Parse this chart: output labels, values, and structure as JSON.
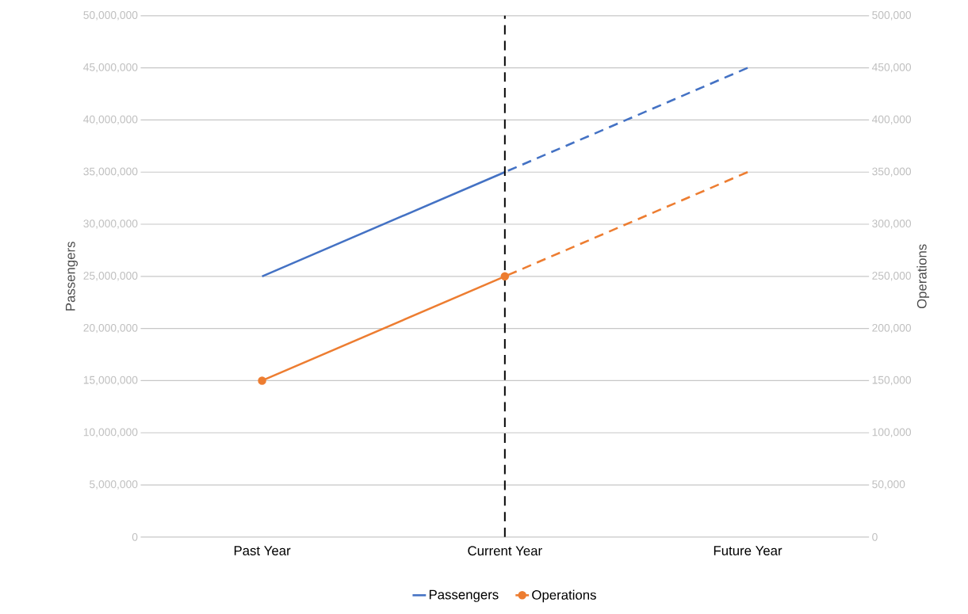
{
  "chart_data": {
    "type": "line",
    "categories": [
      "Past Year",
      "Current Year",
      "Future Year"
    ],
    "series": [
      {
        "name": "Passengers",
        "color": "#4472c4",
        "values": [
          25000000,
          35000000,
          null
        ],
        "line_style": "solid"
      },
      {
        "color": "#4472c4",
        "values": [
          null,
          35000000,
          45000000
        ],
        "line_style": "dashed"
      },
      {
        "name": "Operations",
        "color": "#ed7d31",
        "values": [
          150000,
          250000,
          null
        ],
        "axis": "y2",
        "marker": "circle",
        "line_style": "solid"
      },
      {
        "color": "#ed7d31",
        "values": [
          null,
          250000,
          350000
        ],
        "axis": "y2",
        "line_style": "dashed"
      }
    ],
    "ylabel": "Passengers",
    "y2label": "Operations",
    "ylim": [
      0,
      50000000
    ],
    "yticks": [
      0,
      {
        "value": 5000000,
        "label": "5,000,000"
      },
      {
        "value": 10000000,
        "label": "10,000,000"
      },
      {
        "value": 15000000,
        "label": "15,000,000"
      },
      {
        "value": 20000000,
        "label": "20,000,000"
      },
      {
        "value": 25000000,
        "label": "25,000,000"
      },
      {
        "value": 30000000,
        "label": "30,000,000"
      },
      {
        "value": 35000000,
        "label": "35,000,000"
      },
      {
        "value": 40000000,
        "label": "40,000,000"
      },
      {
        "value": 45000000,
        "label": "45,000,000"
      },
      {
        "value": 50000000,
        "label": "50,000,000"
      }
    ],
    "y2lim": [
      0,
      500000
    ],
    "y2ticks": [
      0,
      {
        "value": 50000,
        "label": "50,000"
      },
      {
        "value": 100000,
        "label": "100,000"
      },
      {
        "value": 150000,
        "label": "150,000"
      },
      {
        "value": 200000,
        "label": "200,000"
      },
      {
        "value": 250000,
        "label": "250,000"
      },
      {
        "value": 300000,
        "label": "300,000"
      },
      {
        "value": 350000,
        "label": "350,000"
      },
      {
        "value": 400000,
        "label": "400,000"
      },
      {
        "value": 450000,
        "label": "450,000"
      },
      {
        "value": 500000,
        "label": "500,000"
      }
    ],
    "grid": "y",
    "legend": "bottom",
    "ref_lines": [
      {
        "axis": "x",
        "value": "Current Year",
        "color": "#000000",
        "line_style": "dashed"
      }
    ]
  }
}
